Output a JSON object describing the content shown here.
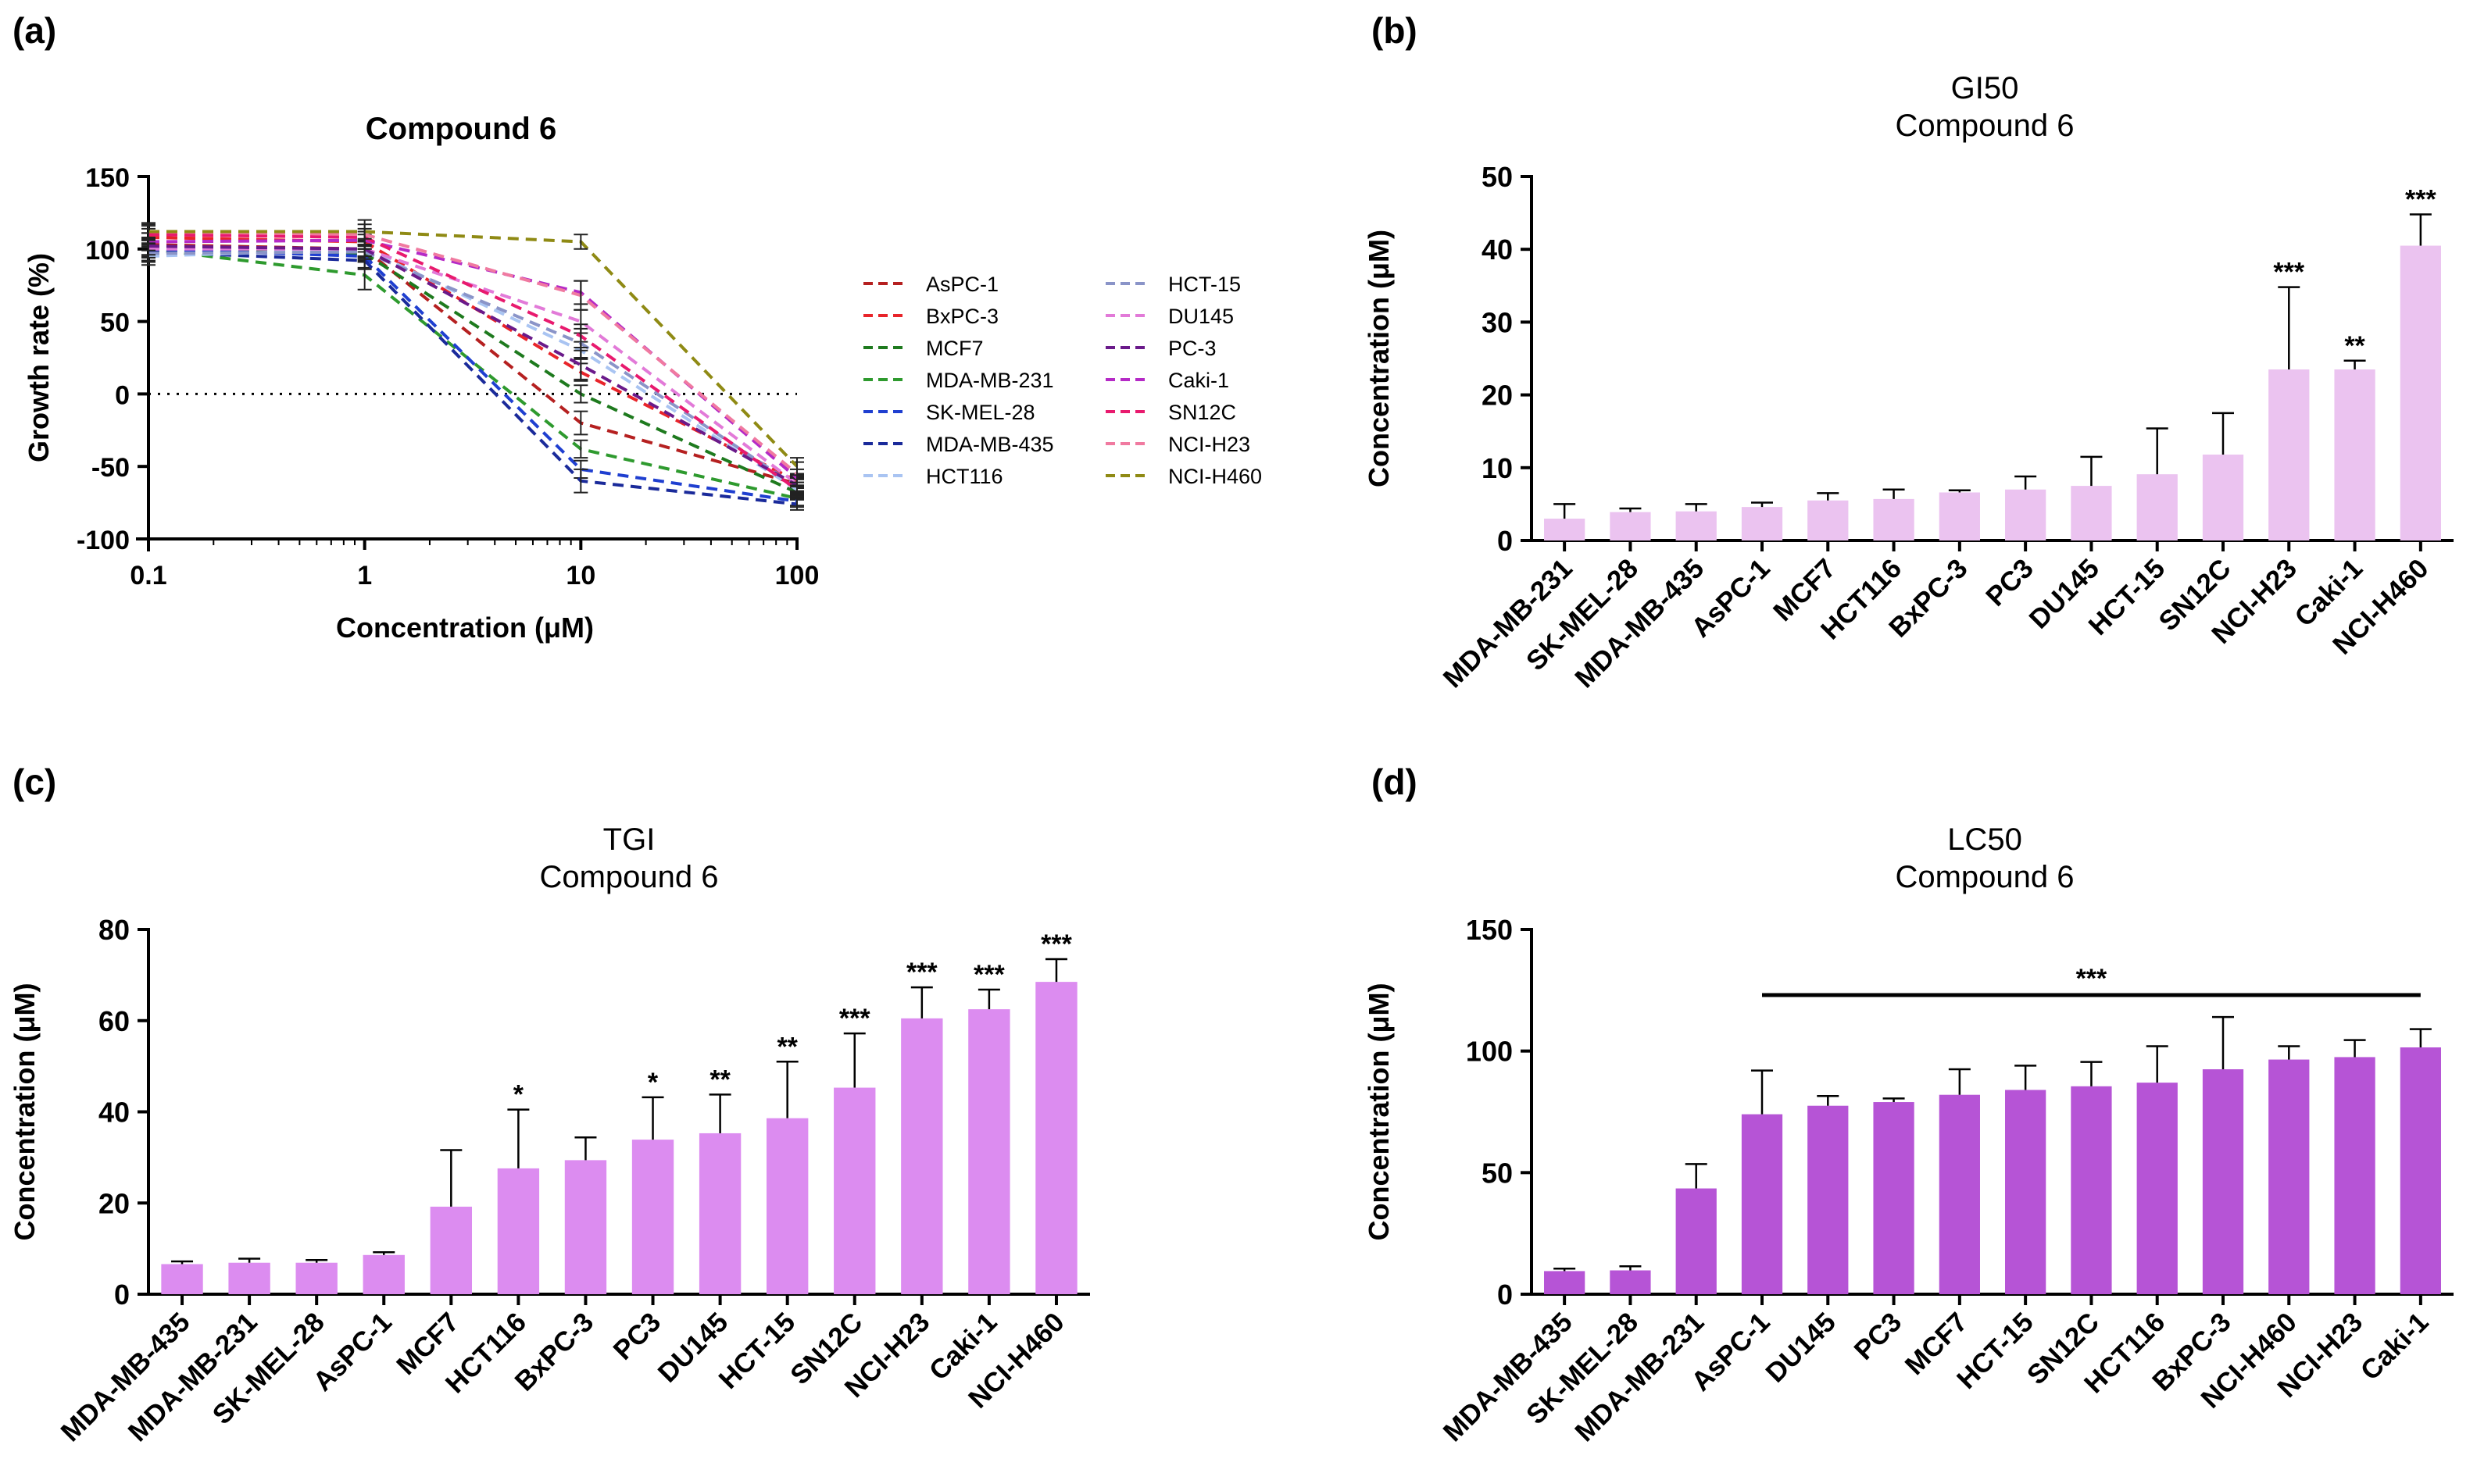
{
  "panels": [
    {
      "label": "(a)"
    },
    {
      "label": "(b)"
    },
    {
      "label": "(c)"
    },
    {
      "label": "(d)"
    }
  ],
  "chart_data": [
    {
      "type": "line",
      "title": "Compound 6",
      "xlabel": "Concentration (μM)",
      "ylabel": "Growth rate (%)",
      "xscale": "log",
      "x": [
        0.1,
        1,
        10,
        100
      ],
      "x_tick_labels": [
        "0.1",
        "1",
        "10",
        "100"
      ],
      "ylim": [
        -100,
        150
      ],
      "y_ticks": [
        -100,
        -50,
        0,
        50,
        100,
        150
      ],
      "reference_line": 0,
      "legend_position": "right",
      "series": [
        {
          "name": "AsPC-1",
          "color": "#b52020",
          "values": [
            103,
            100,
            -20,
            -62
          ],
          "errors": [
            8,
            6,
            8,
            6
          ]
        },
        {
          "name": "BxPC-3",
          "color": "#e8242a",
          "values": [
            108,
            105,
            15,
            -60
          ],
          "errors": [
            6,
            5,
            6,
            5
          ]
        },
        {
          "name": "MCF7",
          "color": "#1e7a1e",
          "values": [
            100,
            97,
            0,
            -68
          ],
          "errors": [
            6,
            6,
            6,
            5
          ]
        },
        {
          "name": "MDA-MB-231",
          "color": "#2e9a2e",
          "values": [
            100,
            82,
            -38,
            -72
          ],
          "errors": [
            8,
            10,
            6,
            5
          ]
        },
        {
          "name": "SK-MEL-28",
          "color": "#1f3fd0",
          "values": [
            100,
            95,
            -52,
            -74
          ],
          "errors": [
            6,
            8,
            6,
            4
          ]
        },
        {
          "name": "MDA-MB-435",
          "color": "#1a2a9a",
          "values": [
            98,
            92,
            -60,
            -76
          ],
          "errors": [
            6,
            6,
            8,
            4
          ]
        },
        {
          "name": "HCT116",
          "color": "#a9c4f2",
          "values": [
            95,
            100,
            30,
            -66
          ],
          "errors": [
            6,
            5,
            6,
            5
          ]
        },
        {
          "name": "HCT-15",
          "color": "#8a94c8",
          "values": [
            97,
            98,
            35,
            -64
          ],
          "errors": [
            6,
            5,
            10,
            5
          ]
        },
        {
          "name": "DU145",
          "color": "#e27ad8",
          "values": [
            100,
            100,
            50,
            -62
          ],
          "errors": [
            6,
            5,
            8,
            5
          ]
        },
        {
          "name": "PC-3",
          "color": "#6a1a8a",
          "values": [
            102,
            100,
            20,
            -63
          ],
          "errors": [
            6,
            5,
            10,
            5
          ]
        },
        {
          "name": "Caki-1",
          "color": "#b52ac6",
          "values": [
            105,
            106,
            70,
            -58
          ],
          "errors": [
            6,
            6,
            8,
            6
          ]
        },
        {
          "name": "SN12C",
          "color": "#e81a6e",
          "values": [
            110,
            108,
            40,
            -66
          ],
          "errors": [
            6,
            6,
            8,
            5
          ]
        },
        {
          "name": "NCI-H23",
          "color": "#f07aa0",
          "values": [
            112,
            110,
            68,
            -55
          ],
          "errors": [
            6,
            10,
            10,
            8
          ]
        },
        {
          "name": "NCI-H460",
          "color": "#8f8a14",
          "values": [
            112,
            112,
            105,
            -50
          ],
          "errors": [
            5,
            5,
            5,
            6
          ]
        }
      ]
    },
    {
      "type": "bar",
      "title": "GI50",
      "subtitle": "Compound 6",
      "xlabel": "",
      "ylabel": "Concentration (μM)",
      "ylim": [
        0,
        50
      ],
      "y_ticks": [
        0,
        10,
        20,
        30,
        40,
        50
      ],
      "bar_color": "#ebc3f0",
      "categories": [
        "MDA-MB-231",
        "SK-MEL-28",
        "MDA-MB-435",
        "AsPC-1",
        "MCF7",
        "HCT116",
        "BxPC-3",
        "PC3",
        "DU145",
        "HCT-15",
        "SN12C",
        "NCI-H23",
        "Caki-1",
        "NCI-H460"
      ],
      "values": [
        3.0,
        3.9,
        4.0,
        4.6,
        5.5,
        5.7,
        6.6,
        7.0,
        7.5,
        9.1,
        11.8,
        23.5,
        23.5,
        40.5
      ],
      "errors": [
        2.0,
        0.5,
        1.0,
        0.6,
        1.0,
        1.3,
        0.3,
        1.8,
        4.0,
        6.3,
        5.7,
        11.3,
        1.2,
        4.3
      ],
      "annotations": [
        "",
        "",
        "",
        "",
        "",
        "",
        "",
        "",
        "",
        "",
        "",
        "***",
        "**",
        "***"
      ],
      "bracket": null
    },
    {
      "type": "bar",
      "title": "TGI",
      "subtitle": "Compound 6",
      "xlabel": "",
      "ylabel": "Concentration (μM)",
      "ylim": [
        0,
        80
      ],
      "y_ticks": [
        0,
        20,
        40,
        60,
        80
      ],
      "bar_color": "#dc8cf0",
      "categories": [
        "MDA-MB-435",
        "MDA-MB-231",
        "SK-MEL-28",
        "AsPC-1",
        "MCF7",
        "HCT116",
        "BxPC-3",
        "PC3",
        "DU145",
        "HCT-15",
        "SN12C",
        "NCI-H23",
        "Caki-1",
        "NCI-H460"
      ],
      "values": [
        6.6,
        6.9,
        6.9,
        8.6,
        19.2,
        27.6,
        29.4,
        33.9,
        35.3,
        38.6,
        45.3,
        60.5,
        62.5,
        68.5
      ],
      "errors": [
        0.6,
        0.9,
        0.6,
        0.6,
        12.4,
        12.9,
        5.0,
        9.3,
        8.5,
        12.4,
        11.9,
        6.8,
        4.3,
        5.0
      ],
      "annotations": [
        "",
        "",
        "",
        "",
        "",
        "*",
        "",
        "*",
        "**",
        "**",
        "***",
        "***",
        "***",
        "***"
      ],
      "bracket": null
    },
    {
      "type": "bar",
      "title": "LC50",
      "subtitle": "Compound 6",
      "xlabel": "",
      "ylabel": "Concentration (μM)",
      "ylim": [
        0,
        150
      ],
      "y_ticks": [
        0,
        50,
        100,
        150
      ],
      "bar_color": "#b654d6",
      "categories": [
        "MDA-MB-435",
        "SK-MEL-28",
        "MDA-MB-231",
        "AsPC-1",
        "DU145",
        "PC3",
        "MCF7",
        "HCT-15",
        "SN12C",
        "HCT116",
        "BxPC-3",
        "NCI-H460",
        "NCI-H23",
        "Caki-1"
      ],
      "values": [
        9.5,
        9.8,
        43.5,
        74.0,
        77.5,
        79.0,
        82.0,
        84.0,
        85.5,
        87.0,
        92.5,
        96.5,
        97.5,
        101.5
      ],
      "errors": [
        1.0,
        1.7,
        10.0,
        18.0,
        4.0,
        1.5,
        10.5,
        10.0,
        10.0,
        15.0,
        21.5,
        5.5,
        7.0,
        7.5
      ],
      "annotations": [
        "",
        "",
        "",
        "",
        "",
        "",
        "",
        "",
        "",
        "",
        "",
        "",
        "",
        ""
      ],
      "bracket": {
        "from": 3,
        "to": 13,
        "label": "***",
        "level": 123
      }
    }
  ]
}
